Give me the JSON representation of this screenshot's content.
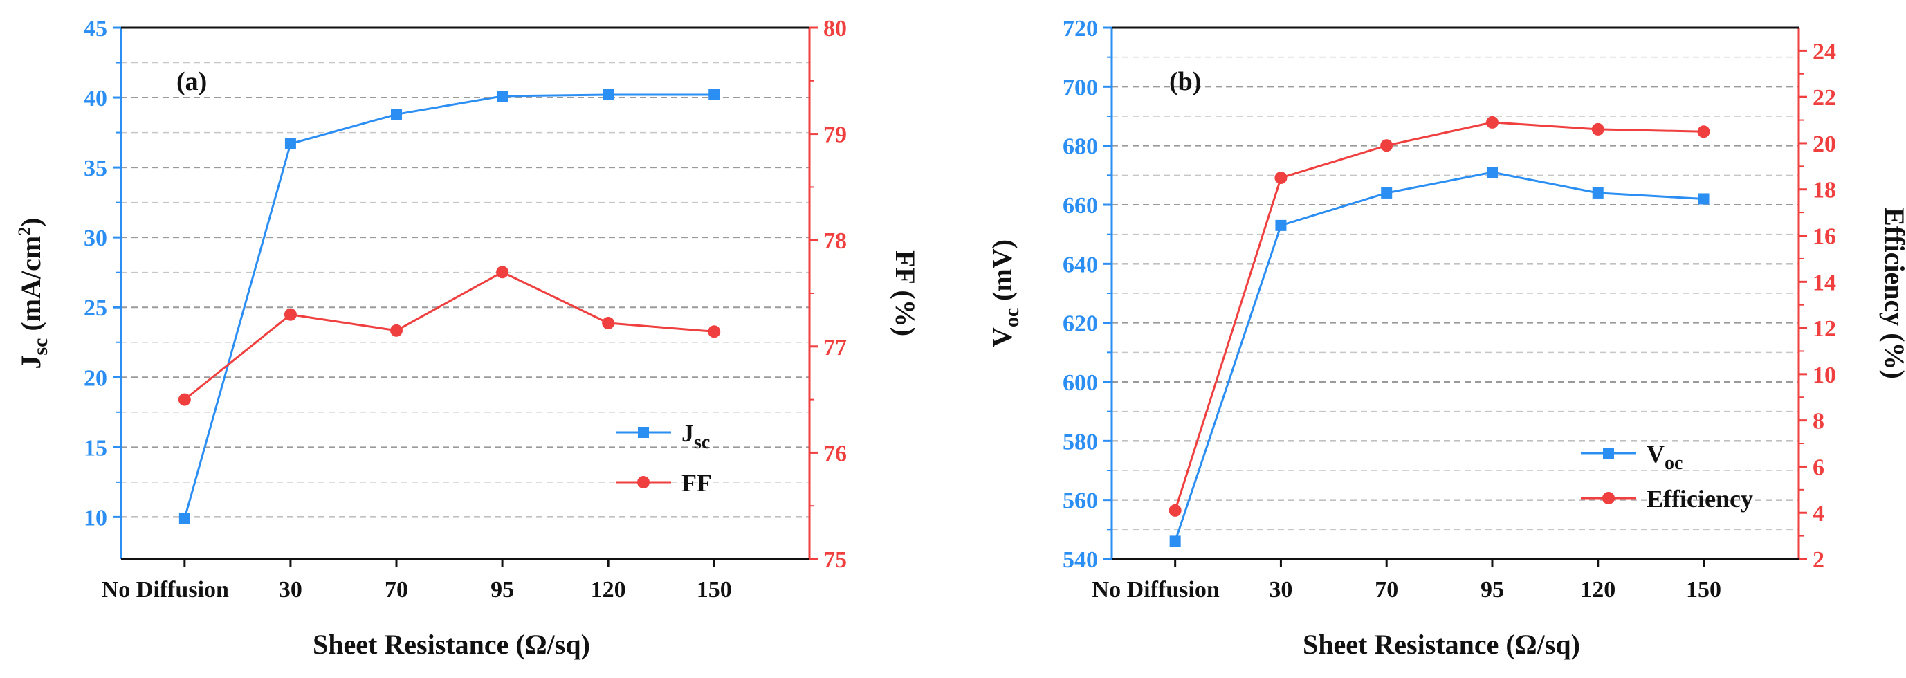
{
  "colors": {
    "blue": "#2b8ef2",
    "red": "#ef3f3f",
    "grid": "#9a9a9a",
    "frame": "#111111"
  },
  "chart_data": [
    {
      "type": "line",
      "panel_label": "(a)",
      "categories": [
        "No Diffusion",
        "30",
        "70",
        "95",
        "120",
        "150"
      ],
      "xlabel": "Sheet Resistance (Ω/sq)",
      "left_axis": {
        "label_main": "J",
        "label_sub": "sc",
        "label_unit": " (mA/cm",
        "label_sup": "2",
        "label_close": ")",
        "ylim": [
          7,
          45
        ],
        "ticks": [
          "10",
          "15",
          "20",
          "25",
          "30",
          "35",
          "40",
          "45"
        ]
      },
      "right_axis": {
        "label": "FF (%)",
        "ylim": [
          75,
          80
        ],
        "ticks": [
          "75",
          "76",
          "77",
          "78",
          "79",
          "80"
        ]
      },
      "series": [
        {
          "name": "J",
          "name_sub": "sc",
          "axis": "left",
          "marker": "square",
          "color": "#2b8ef2",
          "values": [
            9.9,
            36.7,
            38.8,
            40.1,
            40.2,
            40.2
          ]
        },
        {
          "name": "FF",
          "name_sub": "",
          "axis": "right",
          "marker": "circle",
          "color": "#ef3f3f",
          "values": [
            76.5,
            77.3,
            77.15,
            77.7,
            77.22,
            77.14
          ]
        }
      ]
    },
    {
      "type": "line",
      "panel_label": "(b)",
      "categories": [
        "No Diffusion",
        "30",
        "70",
        "95",
        "120",
        "150"
      ],
      "xlabel": "Sheet Resistance (Ω/sq)",
      "left_axis": {
        "label_main": "V",
        "label_sub": "oc",
        "label_unit": " (mV)",
        "label_sup": "",
        "label_close": "",
        "ylim": [
          540,
          720
        ],
        "ticks": [
          "540",
          "560",
          "580",
          "600",
          "620",
          "640",
          "660",
          "680",
          "700",
          "720"
        ]
      },
      "right_axis": {
        "label": "Efficiency (%)",
        "ylim": [
          2,
          25
        ],
        "ticks": [
          "2",
          "4",
          "6",
          "8",
          "10",
          "12",
          "14",
          "16",
          "18",
          "20",
          "22",
          "24"
        ]
      },
      "series": [
        {
          "name": "V",
          "name_sub": "oc",
          "axis": "left",
          "marker": "square",
          "color": "#2b8ef2",
          "values": [
            546,
            653,
            664,
            671,
            664,
            662
          ]
        },
        {
          "name": "Efficiency",
          "name_sub": "",
          "axis": "right",
          "marker": "circle",
          "color": "#ef3f3f",
          "values": [
            4.1,
            18.5,
            19.9,
            20.9,
            20.6,
            20.5
          ]
        }
      ]
    }
  ]
}
